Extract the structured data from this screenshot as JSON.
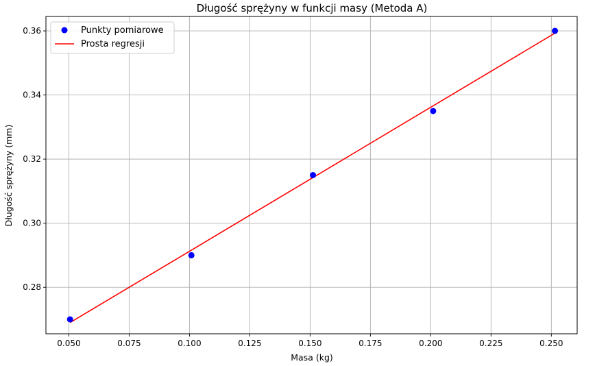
{
  "chart_data": {
    "type": "scatter",
    "title": "Długość sprężyny w funkcji masy (Metoda A)",
    "xlabel": "Masa (kg)",
    "ylabel": "Długość sprężyny (mm)",
    "xlim": [
      0.0405,
      0.2607
    ],
    "ylim": [
      0.2655,
      0.3645
    ],
    "grid": true,
    "legend_position": "top-left",
    "x_ticks": [
      "0.050",
      "0.075",
      "0.100",
      "0.125",
      "0.150",
      "0.175",
      "0.200",
      "0.225",
      "0.250"
    ],
    "y_ticks": [
      "0.28",
      "0.30",
      "0.32",
      "0.34",
      "0.36"
    ],
    "series": [
      {
        "name": "Punkty pomiarowe",
        "kind": "scatter",
        "color": "#0000ff",
        "points": [
          {
            "x": 0.0505,
            "y": 0.27
          },
          {
            "x": 0.1008,
            "y": 0.29
          },
          {
            "x": 0.1512,
            "y": 0.315
          },
          {
            "x": 0.201,
            "y": 0.335
          },
          {
            "x": 0.2515,
            "y": 0.36
          }
        ]
      },
      {
        "name": "Prosta regresji",
        "kind": "line",
        "color": "#ff0000",
        "points": [
          {
            "x": 0.0505,
            "y": 0.269
          },
          {
            "x": 0.2515,
            "y": 0.3593
          }
        ]
      }
    ]
  }
}
